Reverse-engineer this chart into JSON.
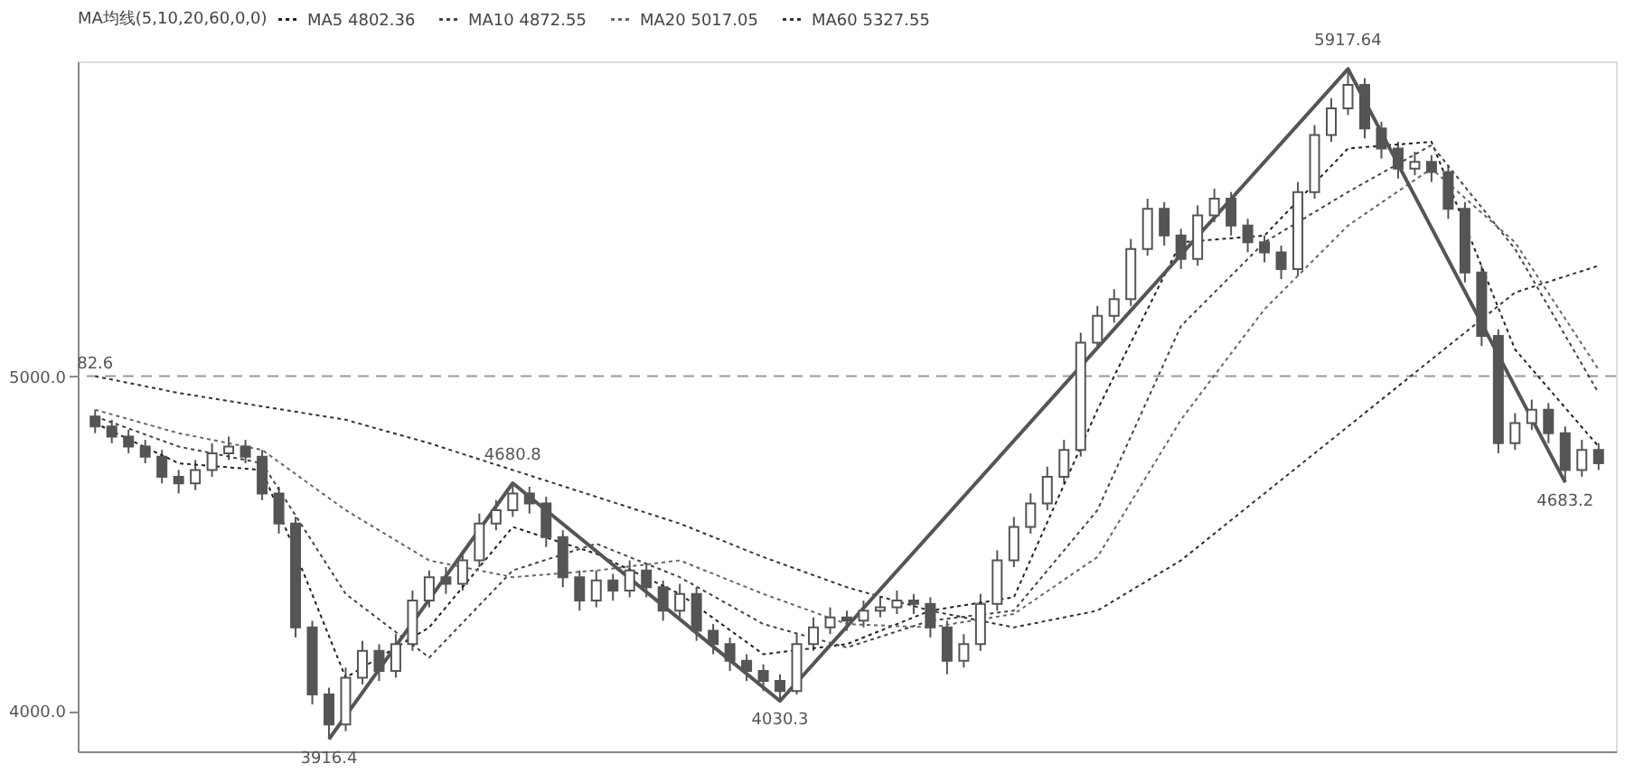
{
  "chart_data": {
    "type": "candlestick",
    "legend_title": "MA均线(5,10,20,60,0,0)",
    "legend": "top left",
    "tick_labels": "y",
    "color": "#555555",
    "categories": [
      null,
      null,
      null,
      null,
      null,
      null,
      null,
      null,
      null,
      null,
      null,
      null,
      null,
      null,
      null,
      null,
      null,
      null,
      null,
      null,
      null,
      null,
      null,
      null,
      null,
      null,
      null,
      null,
      null,
      null,
      null,
      null,
      null,
      null,
      null,
      null,
      null,
      null,
      null,
      null,
      null,
      null,
      null,
      null,
      null,
      null,
      null,
      null,
      null,
      null,
      null,
      null,
      null,
      null,
      null,
      null,
      null,
      null,
      null,
      null,
      null,
      null,
      null,
      null,
      null,
      null,
      null,
      null,
      null,
      null,
      null,
      null,
      null,
      null,
      null,
      null,
      null,
      null,
      null,
      null,
      null,
      null,
      null,
      null,
      null,
      null,
      null,
      null,
      null,
      null,
      null
    ],
    "ohlc": [
      [
        4880,
        4900,
        4830,
        4850
      ],
      [
        4850,
        4870,
        4800,
        4820
      ],
      [
        4820,
        4840,
        4770,
        4790
      ],
      [
        4790,
        4810,
        4740,
        4760
      ],
      [
        4760,
        4780,
        4680,
        4700
      ],
      [
        4700,
        4720,
        4650,
        4680
      ],
      [
        4680,
        4750,
        4660,
        4720
      ],
      [
        4720,
        4800,
        4700,
        4770
      ],
      [
        4770,
        4820,
        4750,
        4790
      ],
      [
        4790,
        4810,
        4740,
        4760
      ],
      [
        4760,
        4780,
        4630,
        4650
      ],
      [
        4650,
        4670,
        4530,
        4560
      ],
      [
        4560,
        4580,
        4220,
        4250
      ],
      [
        4250,
        4270,
        4020,
        4050
      ],
      [
        4050,
        4070,
        3916.4,
        3960
      ],
      [
        3960,
        4130,
        3940,
        4100
      ],
      [
        4100,
        4210,
        4080,
        4180
      ],
      [
        4180,
        4200,
        4090,
        4120
      ],
      [
        4120,
        4230,
        4100,
        4200
      ],
      [
        4200,
        4360,
        4180,
        4330
      ],
      [
        4330,
        4420,
        4310,
        4400
      ],
      [
        4400,
        4430,
        4350,
        4380
      ],
      [
        4380,
        4480,
        4360,
        4450
      ],
      [
        4450,
        4590,
        4430,
        4560
      ],
      [
        4560,
        4630,
        4540,
        4600
      ],
      [
        4600,
        4680.8,
        4580,
        4650
      ],
      [
        4650,
        4670,
        4590,
        4620
      ],
      [
        4620,
        4640,
        4490,
        4520
      ],
      [
        4520,
        4540,
        4370,
        4400
      ],
      [
        4400,
        4420,
        4300,
        4330
      ],
      [
        4330,
        4420,
        4310,
        4390
      ],
      [
        4390,
        4410,
        4330,
        4360
      ],
      [
        4360,
        4450,
        4340,
        4420
      ],
      [
        4420,
        4440,
        4340,
        4370
      ],
      [
        4370,
        4390,
        4270,
        4300
      ],
      [
        4300,
        4380,
        4280,
        4350
      ],
      [
        4350,
        4370,
        4210,
        4240
      ],
      [
        4240,
        4260,
        4170,
        4200
      ],
      [
        4200,
        4220,
        4120,
        4150
      ],
      [
        4150,
        4170,
        4090,
        4120
      ],
      [
        4120,
        4140,
        4060,
        4090
      ],
      [
        4090,
        4110,
        4030.3,
        4060
      ],
      [
        4060,
        4230,
        4050,
        4200
      ],
      [
        4200,
        4280,
        4180,
        4250
      ],
      [
        4250,
        4310,
        4230,
        4280
      ],
      [
        4280,
        4300,
        4240,
        4270
      ],
      [
        4270,
        4330,
        4250,
        4300
      ],
      [
        4300,
        4340,
        4280,
        4310
      ],
      [
        4310,
        4360,
        4290,
        4330
      ],
      [
        4330,
        4350,
        4290,
        4320
      ],
      [
        4320,
        4340,
        4220,
        4250
      ],
      [
        4250,
        4270,
        4110,
        4150
      ],
      [
        4150,
        4230,
        4130,
        4200
      ],
      [
        4200,
        4350,
        4180,
        4320
      ],
      [
        4320,
        4480,
        4300,
        4450
      ],
      [
        4450,
        4580,
        4430,
        4550
      ],
      [
        4550,
        4650,
        4530,
        4620
      ],
      [
        4620,
        4730,
        4600,
        4700
      ],
      [
        4700,
        4810,
        4680,
        4780
      ],
      [
        4780,
        5130,
        4760,
        5100
      ],
      [
        5100,
        5210,
        5080,
        5180
      ],
      [
        5180,
        5260,
        5160,
        5230
      ],
      [
        5230,
        5410,
        5210,
        5380
      ],
      [
        5380,
        5530,
        5360,
        5500
      ],
      [
        5500,
        5520,
        5390,
        5420
      ],
      [
        5420,
        5440,
        5320,
        5350
      ],
      [
        5350,
        5510,
        5330,
        5480
      ],
      [
        5480,
        5560,
        5460,
        5530
      ],
      [
        5530,
        5550,
        5420,
        5450
      ],
      [
        5450,
        5470,
        5370,
        5400
      ],
      [
        5400,
        5420,
        5340,
        5370
      ],
      [
        5370,
        5390,
        5290,
        5320
      ],
      [
        5320,
        5580,
        5300,
        5550
      ],
      [
        5550,
        5750,
        5530,
        5720
      ],
      [
        5720,
        5830,
        5700,
        5800
      ],
      [
        5800,
        5917.64,
        5780,
        5870
      ],
      [
        5870,
        5890,
        5710,
        5740
      ],
      [
        5740,
        5760,
        5650,
        5680
      ],
      [
        5680,
        5700,
        5590,
        5620
      ],
      [
        5620,
        5670,
        5600,
        5640
      ],
      [
        5640,
        5660,
        5580,
        5610
      ],
      [
        5610,
        5630,
        5470,
        5500
      ],
      [
        5500,
        5520,
        5280,
        5310
      ],
      [
        5310,
        5330,
        5090,
        5120
      ],
      [
        5120,
        5140,
        4770,
        4800
      ],
      [
        4800,
        4890,
        4780,
        4860
      ],
      [
        4860,
        4930,
        4840,
        4900
      ],
      [
        4900,
        4920,
        4800,
        4830
      ],
      [
        4830,
        4850,
        4683.2,
        4720
      ],
      [
        4720,
        4810,
        4700,
        4780
      ],
      [
        4780,
        4800,
        4720,
        4740
      ]
    ],
    "series": [
      {
        "name": "MA5 4802.36",
        "type": "line",
        "line_style": "dotted",
        "color": "#222222",
        "values": [
          4860,
          null,
          null,
          null,
          null,
          4740,
          null,
          null,
          null,
          null,
          4720,
          null,
          null,
          null,
          null,
          4100,
          null,
          null,
          null,
          null,
          4250,
          null,
          null,
          null,
          null,
          4550,
          null,
          null,
          null,
          null,
          4470,
          null,
          null,
          null,
          null,
          4350,
          null,
          null,
          null,
          null,
          4170,
          null,
          null,
          null,
          null,
          4200,
          null,
          null,
          null,
          null,
          4300,
          null,
          null,
          null,
          null,
          4340,
          null,
          null,
          null,
          null,
          4900,
          null,
          null,
          null,
          null,
          5400,
          null,
          null,
          null,
          null,
          5420,
          null,
          null,
          null,
          null,
          5680,
          null,
          null,
          null,
          null,
          5700,
          null,
          null,
          null,
          null,
          5080,
          null,
          null,
          null,
          null,
          4790
        ]
      },
      {
        "name": "MA10 4872.55",
        "type": "line",
        "line_style": "dotted",
        "color": "#444444",
        "values": [
          4880,
          null,
          null,
          null,
          null,
          4790,
          null,
          null,
          null,
          null,
          4740,
          null,
          null,
          null,
          null,
          4350,
          null,
          null,
          null,
          null,
          4160,
          null,
          null,
          null,
          null,
          4420,
          null,
          null,
          null,
          null,
          4500,
          null,
          null,
          null,
          null,
          4400,
          null,
          null,
          null,
          null,
          4260,
          null,
          null,
          null,
          null,
          4190,
          null,
          null,
          null,
          null,
          4270,
          null,
          null,
          null,
          null,
          4300,
          null,
          null,
          null,
          null,
          4600,
          null,
          null,
          null,
          null,
          5150,
          null,
          null,
          null,
          null,
          5400,
          null,
          null,
          null,
          null,
          5550,
          null,
          null,
          null,
          null,
          5690,
          null,
          null,
          null,
          null,
          5380,
          null,
          null,
          null,
          null,
          4950
        ]
      },
      {
        "name": "MA20 5017.05",
        "type": "line",
        "line_style": "dotted",
        "color": "#666666",
        "values": [
          4900,
          null,
          null,
          null,
          null,
          4830,
          null,
          null,
          null,
          null,
          4780,
          null,
          null,
          null,
          null,
          4600,
          null,
          null,
          null,
          null,
          4450,
          null,
          null,
          null,
          null,
          4400,
          null,
          null,
          null,
          null,
          4420,
          null,
          null,
          null,
          null,
          4450,
          null,
          null,
          null,
          null,
          4350,
          null,
          null,
          null,
          null,
          4260,
          null,
          null,
          null,
          null,
          4250,
          null,
          null,
          null,
          null,
          4290,
          null,
          null,
          null,
          null,
          4460,
          null,
          null,
          null,
          null,
          4870,
          null,
          null,
          null,
          null,
          5200,
          null,
          null,
          null,
          null,
          5450,
          null,
          null,
          null,
          null,
          5620,
          null,
          null,
          null,
          null,
          5400,
          null,
          null,
          null,
          null,
          5020
        ]
      },
      {
        "name": "MA60 5327.55",
        "type": "line",
        "line_style": "dotted",
        "color": "#333333",
        "values": [
          5000,
          null,
          null,
          null,
          null,
          4950,
          null,
          null,
          null,
          null,
          4910,
          null,
          null,
          null,
          null,
          4870,
          null,
          null,
          null,
          null,
          4800,
          null,
          null,
          null,
          null,
          4720,
          null,
          null,
          null,
          null,
          4640,
          null,
          null,
          null,
          null,
          4560,
          null,
          null,
          null,
          null,
          4460,
          null,
          null,
          null,
          null,
          4370,
          null,
          null,
          null,
          null,
          4300,
          null,
          null,
          null,
          null,
          4250,
          null,
          null,
          null,
          null,
          4300,
          null,
          null,
          null,
          null,
          4450,
          null,
          null,
          null,
          null,
          4650,
          null,
          null,
          null,
          null,
          4850,
          null,
          null,
          null,
          null,
          5050,
          null,
          null,
          null,
          null,
          5250,
          null,
          null,
          null,
          null,
          5330
        ]
      },
      {
        "type": "line",
        "line_style": "solid",
        "color": "#555555",
        "values": [
          null,
          null,
          null,
          null,
          null,
          null,
          null,
          null,
          null,
          null,
          null,
          null,
          null,
          null,
          3916.4,
          null,
          null,
          null,
          null,
          null,
          null,
          null,
          null,
          null,
          null,
          4680.8,
          null,
          null,
          null,
          null,
          null,
          null,
          null,
          null,
          null,
          null,
          null,
          null,
          null,
          null,
          null,
          4030.3,
          null,
          null,
          null,
          null,
          null,
          null,
          null,
          null,
          null,
          null,
          null,
          null,
          null,
          null,
          null,
          null,
          null,
          null,
          null,
          null,
          null,
          null,
          null,
          null,
          null,
          null,
          null,
          null,
          null,
          null,
          null,
          null,
          null,
          5917.64,
          null,
          null,
          null,
          null,
          null,
          null,
          null,
          null,
          null,
          null,
          null,
          null,
          4683.2,
          null,
          null
        ]
      }
    ],
    "ylim": [
      3880,
      5940
    ],
    "yticks": [
      {
        "value": 4000,
        "label": "4000.0"
      },
      {
        "value": 5000,
        "label": "5000.0"
      }
    ],
    "ref_lines": [
      {
        "axis": "y",
        "value": 5000,
        "color": "#999999",
        "line_style": "dashed"
      }
    ],
    "annotations": [
      "3916.4",
      "4680.8",
      "4030.3",
      "5917.64",
      "4683.2",
      "82.6"
    ]
  }
}
